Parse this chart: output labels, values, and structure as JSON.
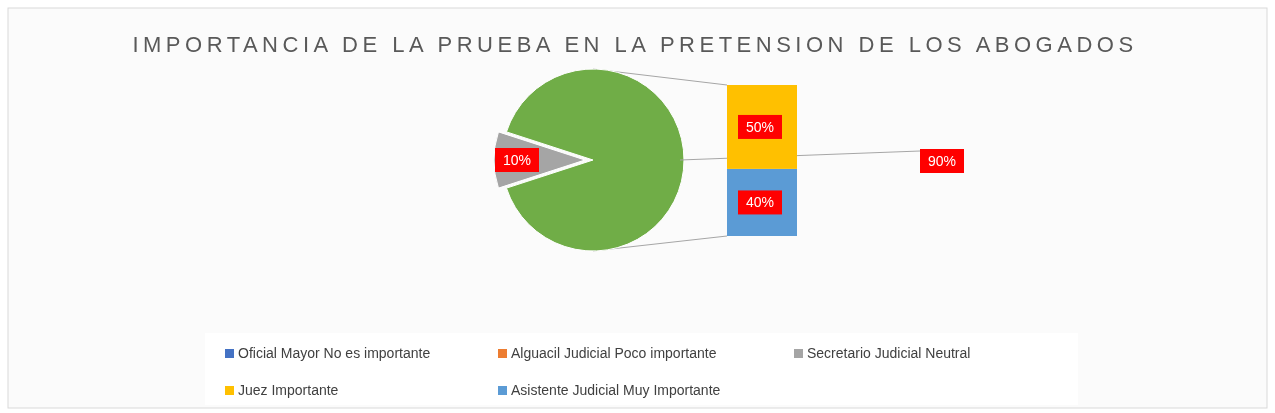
{
  "chart_data": [
    {
      "type": "pie",
      "title": "IMPORTANCIA DE LA PRUEBA EN LA PRETENSION DE LOS ABOGADOS",
      "categories": [
        "Oficial Mayor No es importante",
        "Alguacil Judicial Poco importante",
        "Secretario Judicial Neutral",
        null
      ],
      "values": [
        0,
        0,
        10,
        90
      ],
      "colors": [
        "#4472c4",
        "#ed7d31",
        "#a5a5a5",
        "#70ad47"
      ],
      "value_labels": [
        null,
        null,
        "10%",
        "90%"
      ],
      "legend": "bottom"
    },
    {
      "type": "bar",
      "stacked": true,
      "categories": [
        null
      ],
      "series": [
        {
          "name": "Asistente Judicial Muy Importante",
          "color": "#5b9bd5",
          "values": [
            40
          ],
          "value_labels": [
            "40%"
          ]
        },
        {
          "name": "Juez Importante",
          "color": "#ffc000",
          "values": [
            50
          ],
          "value_labels": [
            "50%"
          ]
        }
      ],
      "legend": "bottom"
    }
  ]
}
